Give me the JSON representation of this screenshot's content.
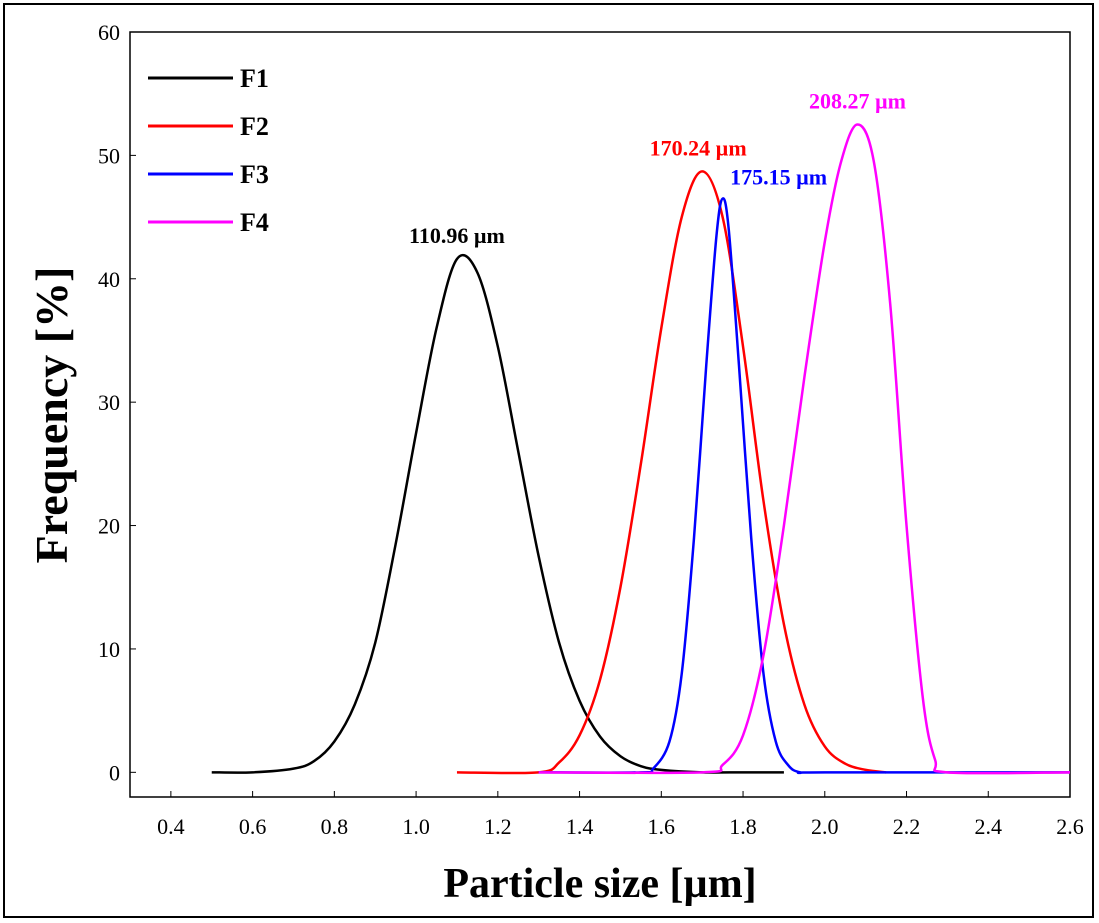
{
  "chart_data": {
    "type": "line",
    "title": "",
    "xlabel": "Particle size [µm]",
    "ylabel": "Frequency [%]",
    "xlim": [
      0.3,
      2.6
    ],
    "ylim": [
      -2,
      60
    ],
    "xticks": [
      "0.4",
      "0.6",
      "0.8",
      "1.0",
      "1.2",
      "1.4",
      "1.6",
      "1.8",
      "2.0",
      "2.2",
      "2.4",
      "2.6"
    ],
    "yticks": [
      "0",
      "10",
      "20",
      "30",
      "40",
      "50",
      "60"
    ],
    "legend_position": "top-left",
    "grid": false,
    "series": [
      {
        "name": "F1",
        "color": "#000000",
        "peak_label": "110.96 µm",
        "x": [
          0.5,
          0.6,
          0.7,
          0.75,
          0.8,
          0.85,
          0.9,
          0.95,
          1.0,
          1.05,
          1.1,
          1.15,
          1.2,
          1.25,
          1.3,
          1.35,
          1.4,
          1.45,
          1.5,
          1.55,
          1.6,
          1.7,
          1.8,
          1.9
        ],
        "y": [
          0,
          0,
          0.3,
          0.9,
          2.5,
          5.5,
          10.5,
          18.5,
          27.5,
          36,
          41.6,
          40.5,
          34.5,
          26,
          17.5,
          10.5,
          5.8,
          2.9,
          1.3,
          0.5,
          0.2,
          0,
          0,
          0
        ]
      },
      {
        "name": "F2",
        "color": "#ff0000",
        "peak_label": "170.24 µm",
        "x": [
          1.1,
          1.3,
          1.35,
          1.4,
          1.45,
          1.5,
          1.55,
          1.6,
          1.65,
          1.7,
          1.75,
          1.8,
          1.85,
          1.9,
          1.95,
          2.0,
          2.05,
          2.1,
          2.15
        ],
        "y": [
          0,
          0,
          0.8,
          3,
          7.5,
          15,
          25,
          36,
          45,
          48.7,
          45,
          34.5,
          22,
          12,
          5.5,
          2.1,
          0.7,
          0.2,
          0
        ]
      },
      {
        "name": "F3",
        "color": "#0000ff",
        "peak_label": "175.15 µm",
        "x": [
          1.3,
          1.55,
          1.58,
          1.62,
          1.65,
          1.68,
          1.71,
          1.735,
          1.75,
          1.765,
          1.79,
          1.82,
          1.85,
          1.88,
          1.91,
          1.94,
          2.0,
          2.6
        ],
        "y": [
          0,
          0,
          0.3,
          2.5,
          8,
          19,
          33,
          43.5,
          46.5,
          44,
          33,
          19,
          8,
          2.5,
          0.6,
          0,
          0,
          0
        ]
      },
      {
        "name": "F4",
        "color": "#ff00ff",
        "peak_label": "208.27 µm",
        "x": [
          1.3,
          1.7,
          1.75,
          1.8,
          1.85,
          1.9,
          1.95,
          2.0,
          2.04,
          2.08,
          2.12,
          2.16,
          2.2,
          2.24,
          2.27,
          2.3,
          2.6
        ],
        "y": [
          0,
          0,
          0.6,
          3,
          9.5,
          20,
          32,
          43,
          49.5,
          52.5,
          49.5,
          38,
          20,
          6,
          1,
          0,
          0
        ]
      }
    ]
  }
}
